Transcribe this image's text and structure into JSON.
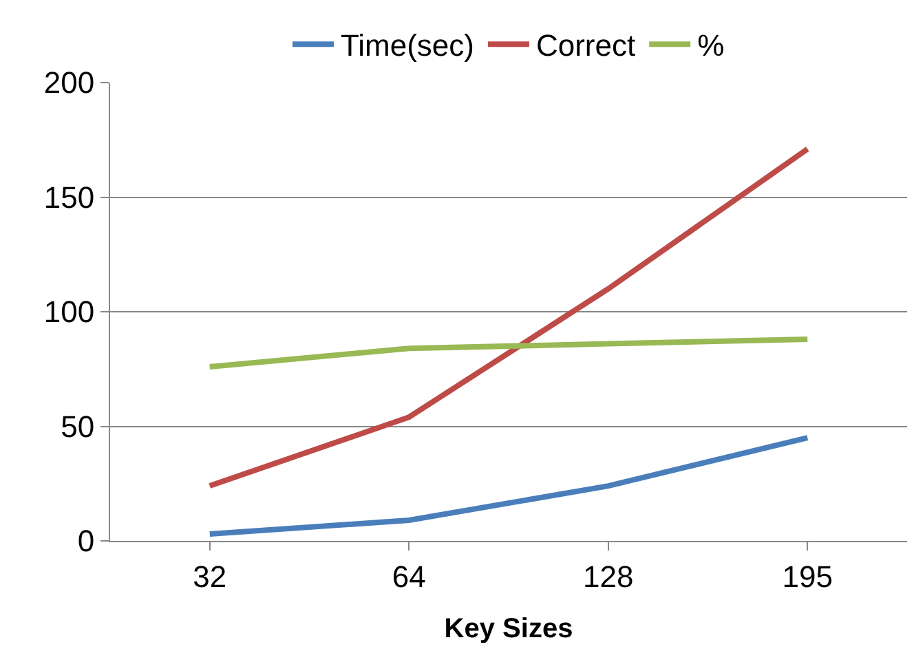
{
  "chart_data": {
    "type": "line",
    "xlabel": "Key Sizes",
    "categories": [
      "32",
      "64",
      "128",
      "195"
    ],
    "series": [
      {
        "name": "Time(sec)",
        "color": "#4a7ebb",
        "values": [
          3,
          9,
          24,
          45
        ]
      },
      {
        "name": "Correct",
        "color": "#be4b48",
        "values": [
          24,
          54,
          110,
          171
        ]
      },
      {
        "name": "%",
        "color": "#98b954",
        "values": [
          76,
          84,
          86,
          88
        ]
      }
    ],
    "ylim": [
      0,
      200
    ],
    "yticks": [
      0,
      50,
      100,
      150,
      200
    ],
    "grid": "y",
    "legend": "top",
    "marker": "none",
    "line_style": "solid"
  }
}
